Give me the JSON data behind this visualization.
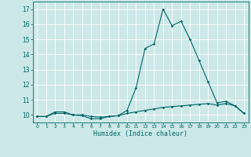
{
  "xlabel": "Humidex (Indice chaleur)",
  "bg_color": "#cce8e8",
  "grid_color": "#ffffff",
  "line_color": "#006666",
  "xlim": [
    -0.5,
    23.5
  ],
  "ylim": [
    9.5,
    17.5
  ],
  "xticks": [
    0,
    1,
    2,
    3,
    4,
    5,
    6,
    7,
    8,
    9,
    10,
    11,
    12,
    13,
    14,
    15,
    16,
    17,
    18,
    19,
    20,
    21,
    22,
    23
  ],
  "yticks": [
    10,
    11,
    12,
    13,
    14,
    15,
    16,
    17
  ],
  "line1_x": [
    0,
    1,
    2,
    3,
    4,
    5,
    6,
    7,
    8,
    9,
    10,
    11,
    12,
    13,
    14,
    15,
    16,
    17,
    18,
    19,
    20,
    21,
    22,
    23
  ],
  "line1_y": [
    9.9,
    9.9,
    10.2,
    10.2,
    10.0,
    9.95,
    9.75,
    9.75,
    9.9,
    9.95,
    10.3,
    11.8,
    14.4,
    14.7,
    17.0,
    15.9,
    16.2,
    15.0,
    13.6,
    12.2,
    10.8,
    10.9,
    10.6,
    10.1
  ],
  "line2_x": [
    0,
    1,
    2,
    3,
    4,
    5,
    6,
    7,
    8,
    9,
    10,
    11,
    12,
    13,
    14,
    15,
    16,
    17,
    18,
    19,
    20,
    21,
    22,
    23
  ],
  "line2_y": [
    9.9,
    9.9,
    10.1,
    10.1,
    10.0,
    10.0,
    9.9,
    9.85,
    9.9,
    9.95,
    10.1,
    10.2,
    10.3,
    10.4,
    10.5,
    10.55,
    10.6,
    10.65,
    10.7,
    10.75,
    10.65,
    10.75,
    10.6,
    10.1
  ]
}
